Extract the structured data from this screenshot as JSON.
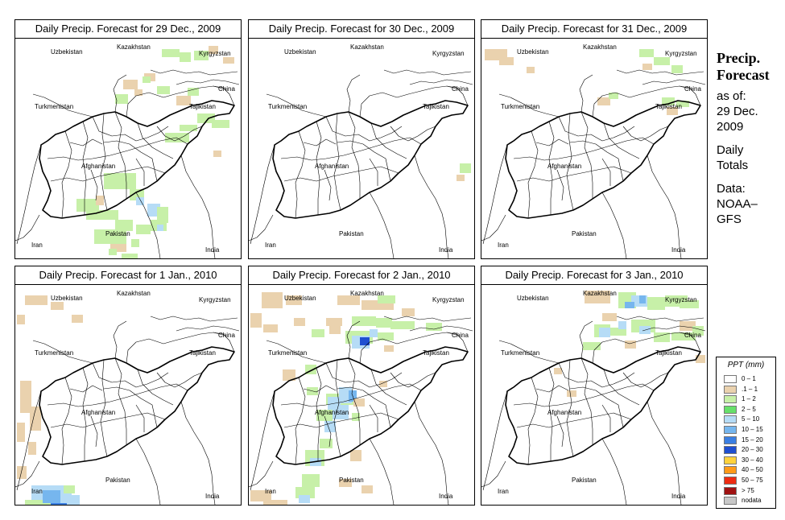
{
  "panels": [
    {
      "title": "Daily Precip. Forecast for  29 Dec., 2009",
      "scenario": 0
    },
    {
      "title": "Daily Precip. Forecast for  30 Dec., 2009",
      "scenario": 1
    },
    {
      "title": "Daily Precip. Forecast for  31 Dec., 2009",
      "scenario": 2
    },
    {
      "title": "Daily Precip. Forecast for   1 Jan., 2010",
      "scenario": 3
    },
    {
      "title": "Daily Precip. Forecast for  2 Jan., 2010",
      "scenario": 4
    },
    {
      "title": "Daily Precip. Forecast for  3 Jan., 2010",
      "scenario": 5
    }
  ],
  "map_labels": {
    "uzbekistan": "Uzbekistan",
    "kazakhstan": "Kazakhstan",
    "kyrgyzstan": "Kyrgyzstan",
    "china": "China",
    "turkmenistan": "Turkmenistan",
    "tajikistan": "Tajikistan",
    "afghanistan": "Afghanistan",
    "pakistan": "Pakistan",
    "iran": "Iran",
    "india": "India"
  },
  "sidebar": {
    "heading_line1": "Precip.",
    "heading_line2": "Forecast",
    "asof": "as of:",
    "date_line1": "29 Dec.",
    "date_line2": "2009",
    "daily": "Daily",
    "totals": "Totals",
    "data": "Data:",
    "noaa": "NOAA–",
    "gfs": "GFS"
  },
  "legend": {
    "title": "PPT (mm)",
    "items": [
      {
        "label": "0 – 1",
        "color": "#ffffff"
      },
      {
        "label": ".1 – 1",
        "color": "#ead2ae"
      },
      {
        "label": "1 – 2",
        "color": "#c7f0a8"
      },
      {
        "label": "2 – 5",
        "color": "#67e06a"
      },
      {
        "label": "5 – 10",
        "color": "#b6dcf6"
      },
      {
        "label": "10 – 15",
        "color": "#76b6ee"
      },
      {
        "label": "15 – 20",
        "color": "#3b7fe2"
      },
      {
        "label": "20 – 30",
        "color": "#1f4fd0"
      },
      {
        "label": "30 – 40",
        "color": "#ffd23c"
      },
      {
        "label": "40 – 50",
        "color": "#ff9a18"
      },
      {
        "label": "50 – 75",
        "color": "#ee2c12"
      },
      {
        "label": "> 75",
        "color": "#a01212"
      },
      {
        "label": "nodata",
        "color": "#c8c8c8"
      }
    ]
  }
}
